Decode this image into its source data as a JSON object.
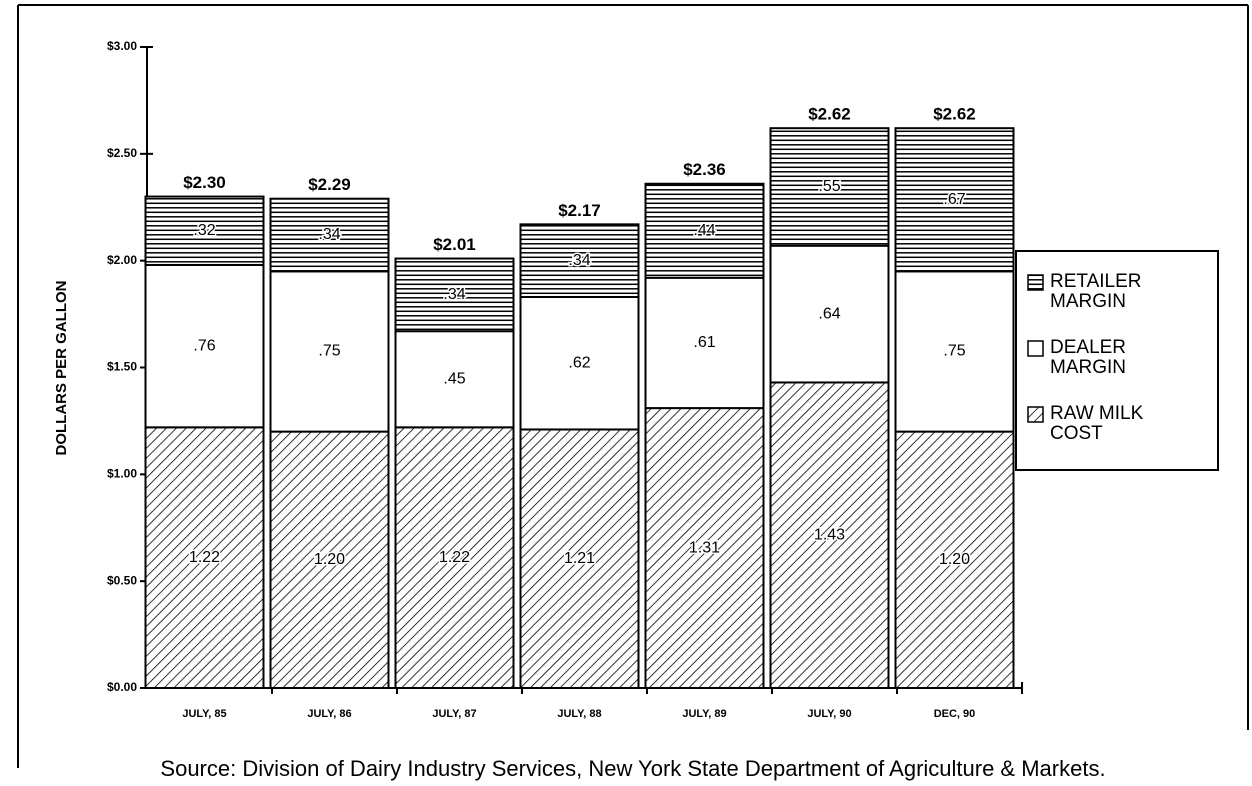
{
  "chart_data": {
    "type": "stacked_bar",
    "y_label": "DOLLARS PER GALLON",
    "source": "Source:  Division of Dairy Industry Services, New York State Department of Agriculture & Markets.",
    "categories": [
      "JULY, 85",
      "JULY, 86",
      "JULY, 87",
      "JULY, 88",
      "JULY, 89",
      "JULY, 90",
      "DEC, 90"
    ],
    "series": [
      {
        "name": "RAW MILK COST",
        "color": "#000000",
        "hatch": "diagonal",
        "values": [
          1.22,
          1.2,
          1.22,
          1.21,
          1.31,
          1.43,
          1.2
        ],
        "value_labels": [
          "1.22",
          "1.20",
          "1.22",
          "1.21",
          "1.31",
          "1.43",
          "1.20"
        ]
      },
      {
        "name": "DEALER MARGIN",
        "color": "#000000",
        "hatch": "none",
        "values": [
          0.76,
          0.75,
          0.45,
          0.62,
          0.61,
          0.64,
          0.75
        ],
        "value_labels": [
          ".76",
          ".75",
          ".45",
          ".62",
          ".61",
          ".64",
          ".75"
        ]
      },
      {
        "name": "RETAILER MARGIN",
        "color": "#000000",
        "hatch": "horizontal",
        "values": [
          0.32,
          0.34,
          0.34,
          0.34,
          0.44,
          0.55,
          0.67
        ],
        "value_labels": [
          ".32",
          ".34",
          ".34",
          ".34",
          ".44",
          ".55",
          ".67"
        ]
      }
    ],
    "totals": [
      2.3,
      2.29,
      2.01,
      2.17,
      2.36,
      2.62,
      2.62
    ],
    "total_labels": [
      "$2.30",
      "$2.29",
      "$2.01",
      "$2.17",
      "$2.36",
      "$2.62",
      "$2.62"
    ],
    "ylim": [
      0,
      3
    ],
    "yticks": [
      {
        "value": 0,
        "label": "$0.00"
      },
      {
        "value": 0.5,
        "label": "$0.50"
      },
      {
        "value": 1,
        "label": "$1.00"
      },
      {
        "value": 1.5,
        "label": "$1.50"
      },
      {
        "value": 2,
        "label": "$2.00"
      },
      {
        "value": 2.5,
        "label": "$2.50"
      },
      {
        "value": 3,
        "label": "$3.00"
      }
    ],
    "legend": "right"
  }
}
